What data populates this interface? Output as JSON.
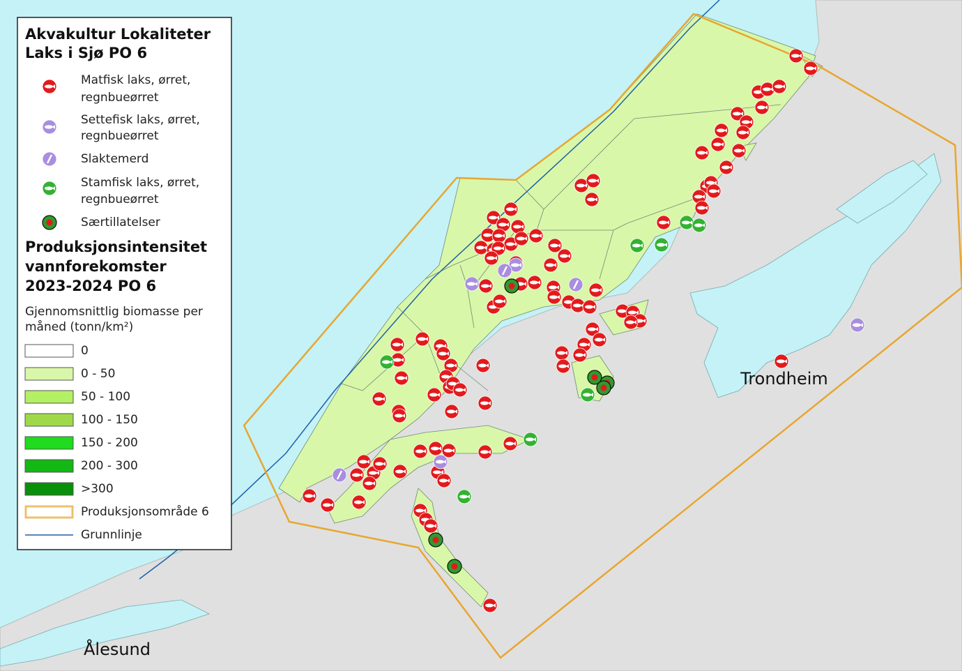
{
  "legend": {
    "title": [
      "Akvakultur Lokaliteter",
      "Laks i Sjø PO 6"
    ],
    "site_types": [
      {
        "lines": [
          "Matfisk laks, ørret,",
          "regnbueørret"
        ],
        "symbol": "matfisk"
      },
      {
        "lines": [
          "Settefisk laks, ørret,",
          "regnbueørret"
        ],
        "symbol": "settefisk"
      },
      {
        "lines": [
          "Slaktemerd"
        ],
        "symbol": "slaktemerd"
      },
      {
        "lines": [
          "Stamfisk laks, ørret,",
          "regnbueørret"
        ],
        "symbol": "stamfisk"
      },
      {
        "lines": [
          "Særtillatelser"
        ],
        "symbol": "saer"
      }
    ],
    "intensity_title": [
      "Produksjonsintensitet",
      "vannforekomster",
      "2023-2024 PO 6"
    ],
    "intensity_subtitle": [
      "Gjennomsnittlig biomasse per",
      "måned (tonn/km²)"
    ],
    "classes": [
      {
        "label": "0",
        "color": "#ffffff"
      },
      {
        "label": "0 - 50",
        "color": "#d9f7a8"
      },
      {
        "label": "50 - 100",
        "color": "#b4f064"
      },
      {
        "label": "100 - 150",
        "color": "#9fd94a"
      },
      {
        "label": "150 - 200",
        "color": "#1fdc1f"
      },
      {
        "label": "200 - 300",
        "color": "#14b814"
      },
      {
        "label": ">300",
        "color": "#0a8f0a"
      }
    ],
    "area": {
      "label": "Produksjonsområde 6",
      "color": "#e8a630"
    },
    "baseline": {
      "label": "Grunnlinje",
      "color": "#1f5fa8"
    }
  },
  "places": {
    "trondheim": "Trondheim",
    "alesund": "Ålesund"
  }
}
